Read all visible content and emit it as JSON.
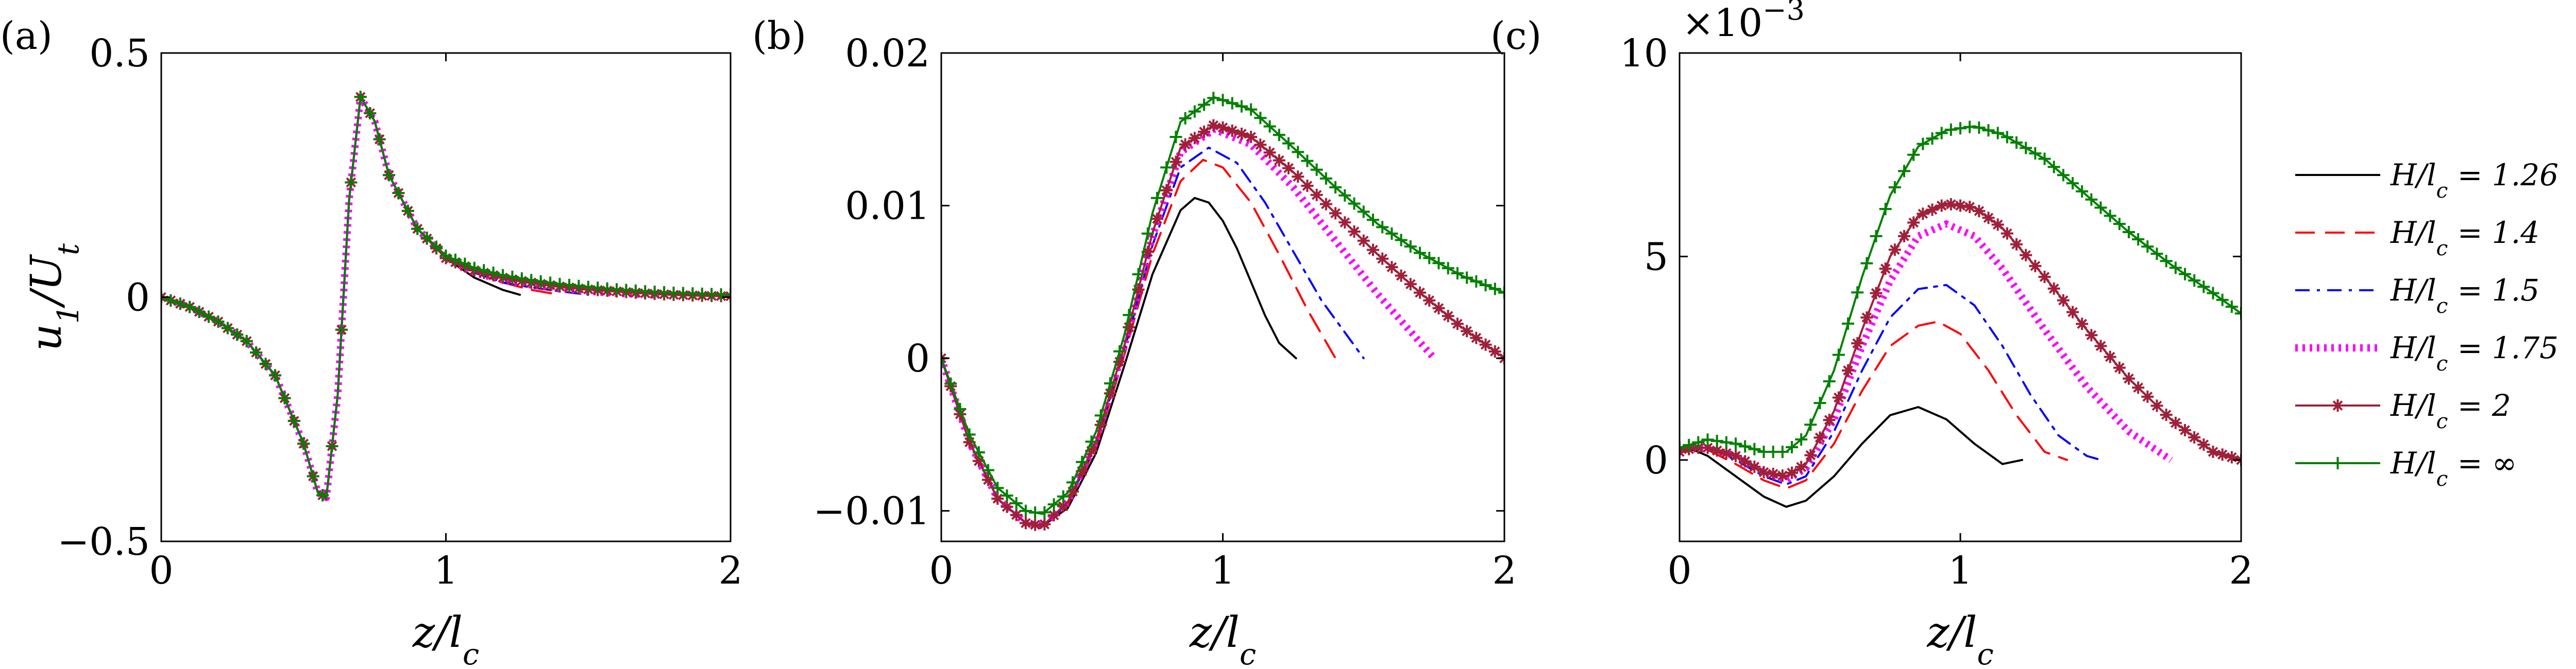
{
  "chart_data": [
    {
      "panel": "(a)",
      "type": "line",
      "xlabel": "z/l_c",
      "ylabel": "u_1/U_t",
      "xlim": [
        0,
        2
      ],
      "ylim": [
        -0.5,
        0.5
      ],
      "xticks": [
        0,
        1,
        2
      ],
      "yticks": [
        -0.5,
        0,
        0.5
      ],
      "xtick_labels": [
        "0",
        "1",
        "2"
      ],
      "ytick_labels": [
        "−0.5",
        "0",
        "0.5"
      ],
      "grid": false,
      "series": [
        {
          "name": "H/l_c = 1.26",
          "color": "#000000",
          "dash": "solid",
          "marker": "none",
          "x": [
            0,
            0.1,
            0.2,
            0.3,
            0.4,
            0.5,
            0.55,
            0.58,
            0.62,
            0.66,
            0.7,
            0.75,
            0.8,
            0.9,
            1.0,
            1.1,
            1.2,
            1.26
          ],
          "y": [
            0,
            -0.02,
            -0.05,
            -0.09,
            -0.16,
            -0.3,
            -0.4,
            -0.41,
            -0.2,
            0.2,
            0.41,
            0.36,
            0.25,
            0.14,
            0.08,
            0.04,
            0.015,
            0.005
          ]
        },
        {
          "name": "H/l_c = 1.4",
          "color": "#ff0000",
          "dash": "long-dash",
          "marker": "none",
          "x": [
            0,
            0.1,
            0.2,
            0.3,
            0.4,
            0.5,
            0.55,
            0.58,
            0.62,
            0.66,
            0.7,
            0.75,
            0.8,
            0.9,
            1.0,
            1.1,
            1.2,
            1.3,
            1.4
          ],
          "y": [
            0,
            -0.02,
            -0.05,
            -0.09,
            -0.16,
            -0.3,
            -0.4,
            -0.41,
            -0.2,
            0.2,
            0.41,
            0.36,
            0.25,
            0.14,
            0.08,
            0.05,
            0.03,
            0.015,
            0.005
          ]
        },
        {
          "name": "H/l_c = 1.5",
          "color": "#0000ff",
          "dash": "dash-dot",
          "marker": "none",
          "x": [
            0,
            0.1,
            0.2,
            0.3,
            0.4,
            0.5,
            0.55,
            0.58,
            0.62,
            0.66,
            0.7,
            0.75,
            0.8,
            0.9,
            1.0,
            1.1,
            1.2,
            1.3,
            1.4,
            1.5
          ],
          "y": [
            0,
            -0.02,
            -0.05,
            -0.09,
            -0.16,
            -0.3,
            -0.4,
            -0.41,
            -0.2,
            0.2,
            0.41,
            0.36,
            0.25,
            0.14,
            0.08,
            0.05,
            0.03,
            0.02,
            0.012,
            0.005
          ]
        },
        {
          "name": "H/l_c = 1.75",
          "color": "#ff00ff",
          "dash": "dotted",
          "marker": "none",
          "x": [
            0,
            0.1,
            0.2,
            0.3,
            0.4,
            0.5,
            0.55,
            0.58,
            0.62,
            0.66,
            0.7,
            0.75,
            0.8,
            0.9,
            1.0,
            1.1,
            1.2,
            1.3,
            1.4,
            1.5,
            1.6,
            1.75
          ],
          "y": [
            0,
            -0.02,
            -0.05,
            -0.09,
            -0.16,
            -0.3,
            -0.4,
            -0.41,
            -0.2,
            0.2,
            0.41,
            0.36,
            0.25,
            0.14,
            0.08,
            0.05,
            0.035,
            0.025,
            0.018,
            0.012,
            0.008,
            0.004
          ]
        },
        {
          "name": "H/l_c = 2",
          "color": "#a0203a",
          "dash": "solid",
          "marker": "asterisk",
          "x": [
            0,
            0.1,
            0.2,
            0.3,
            0.4,
            0.5,
            0.55,
            0.58,
            0.62,
            0.66,
            0.7,
            0.75,
            0.8,
            0.9,
            1.0,
            1.1,
            1.2,
            1.3,
            1.4,
            1.5,
            1.6,
            1.7,
            1.8,
            1.9,
            2.0
          ],
          "y": [
            0,
            -0.02,
            -0.05,
            -0.09,
            -0.16,
            -0.3,
            -0.4,
            -0.41,
            -0.2,
            0.2,
            0.41,
            0.36,
            0.25,
            0.14,
            0.08,
            0.055,
            0.04,
            0.03,
            0.022,
            0.016,
            0.012,
            0.008,
            0.005,
            0.003,
            0.002
          ]
        },
        {
          "name": "H/l_c = ∞",
          "color": "#008000",
          "dash": "solid",
          "marker": "plus",
          "x": [
            0,
            0.1,
            0.2,
            0.3,
            0.4,
            0.5,
            0.55,
            0.58,
            0.62,
            0.66,
            0.7,
            0.75,
            0.8,
            0.9,
            1.0,
            1.1,
            1.2,
            1.3,
            1.4,
            1.5,
            1.6,
            1.7,
            1.8,
            1.9,
            2.0
          ],
          "y": [
            0,
            -0.02,
            -0.05,
            -0.09,
            -0.16,
            -0.3,
            -0.4,
            -0.41,
            -0.2,
            0.2,
            0.41,
            0.36,
            0.25,
            0.14,
            0.085,
            0.06,
            0.045,
            0.035,
            0.027,
            0.021,
            0.016,
            0.012,
            0.009,
            0.007,
            0.005
          ]
        }
      ]
    },
    {
      "panel": "(b)",
      "type": "line",
      "xlabel": "z/l_c",
      "ylabel": "",
      "xlim": [
        0,
        2
      ],
      "ylim": [
        -0.012,
        0.02
      ],
      "xticks": [
        0,
        1,
        2
      ],
      "yticks": [
        -0.01,
        0,
        0.01,
        0.02
      ],
      "xtick_labels": [
        "0",
        "1",
        "2"
      ],
      "ytick_labels": [
        "−0.01",
        "0",
        "0.01",
        "0.02"
      ],
      "grid": false,
      "series": [
        {
          "name": "H/l_c = 1.26",
          "color": "#000000",
          "dash": "solid",
          "marker": "none",
          "x": [
            0,
            0.1,
            0.2,
            0.3,
            0.36,
            0.45,
            0.55,
            0.65,
            0.75,
            0.85,
            0.9,
            0.95,
            1.0,
            1.05,
            1.1,
            1.15,
            1.2,
            1.26
          ],
          "y": [
            0,
            -0.0055,
            -0.0092,
            -0.0108,
            -0.011,
            -0.0098,
            -0.0062,
            -0.0005,
            0.0055,
            0.0097,
            0.0105,
            0.0102,
            0.009,
            0.0072,
            0.005,
            0.0028,
            0.001,
            0
          ]
        },
        {
          "name": "H/l_c = 1.4",
          "color": "#ff0000",
          "dash": "long-dash",
          "marker": "none",
          "x": [
            0,
            0.1,
            0.2,
            0.3,
            0.36,
            0.45,
            0.55,
            0.65,
            0.75,
            0.85,
            0.93,
            1.0,
            1.1,
            1.2,
            1.3,
            1.4
          ],
          "y": [
            0,
            -0.0055,
            -0.0092,
            -0.0108,
            -0.011,
            -0.0096,
            -0.0058,
            0.0002,
            0.0068,
            0.0116,
            0.013,
            0.0125,
            0.0102,
            0.0068,
            0.0032,
            0
          ]
        },
        {
          "name": "H/l_c = 1.5",
          "color": "#0000ff",
          "dash": "dash-dot",
          "marker": "none",
          "x": [
            0,
            0.1,
            0.2,
            0.3,
            0.36,
            0.45,
            0.55,
            0.65,
            0.75,
            0.85,
            0.95,
            1.05,
            1.15,
            1.25,
            1.35,
            1.5
          ],
          "y": [
            0,
            -0.0055,
            -0.0092,
            -0.0108,
            -0.011,
            -0.0095,
            -0.0056,
            0.0005,
            0.0074,
            0.0125,
            0.0138,
            0.0128,
            0.0102,
            0.007,
            0.0038,
            0
          ]
        },
        {
          "name": "H/l_c = 1.75",
          "color": "#ff00ff",
          "dash": "dotted",
          "marker": "none",
          "x": [
            0,
            0.1,
            0.2,
            0.3,
            0.36,
            0.45,
            0.55,
            0.65,
            0.75,
            0.85,
            0.97,
            1.1,
            1.25,
            1.4,
            1.55,
            1.75
          ],
          "y": [
            0,
            -0.0055,
            -0.0092,
            -0.0108,
            -0.011,
            -0.0094,
            -0.0054,
            0.0008,
            0.008,
            0.0135,
            0.015,
            0.014,
            0.0112,
            0.0077,
            0.0042,
            0
          ]
        },
        {
          "name": "H/l_c = 2",
          "color": "#a0203a",
          "dash": "solid",
          "marker": "asterisk",
          "x": [
            0,
            0.1,
            0.2,
            0.3,
            0.36,
            0.45,
            0.55,
            0.65,
            0.75,
            0.85,
            0.97,
            1.1,
            1.25,
            1.4,
            1.55,
            1.7,
            1.85,
            2.0
          ],
          "y": [
            0,
            -0.0055,
            -0.0092,
            -0.0108,
            -0.011,
            -0.0094,
            -0.0054,
            0.0008,
            0.0082,
            0.0138,
            0.0153,
            0.0145,
            0.0122,
            0.0095,
            0.0068,
            0.0043,
            0.002,
            0
          ]
        },
        {
          "name": "H/l_c = ∞",
          "color": "#008000",
          "dash": "solid",
          "marker": "plus",
          "x": [
            0,
            0.1,
            0.2,
            0.3,
            0.36,
            0.45,
            0.55,
            0.65,
            0.75,
            0.85,
            0.97,
            1.1,
            1.25,
            1.4,
            1.55,
            1.7,
            1.85,
            2.0
          ],
          "y": [
            0,
            -0.005,
            -0.0085,
            -0.01,
            -0.0102,
            -0.0088,
            -0.0048,
            0.0015,
            0.0095,
            0.0155,
            0.0171,
            0.0163,
            0.0138,
            0.0112,
            0.0088,
            0.0069,
            0.0054,
            0.0043
          ]
        }
      ]
    },
    {
      "panel": "(c)",
      "type": "line",
      "xlabel": "z/l_c",
      "ylabel": "",
      "xlim": [
        0,
        2
      ],
      "ylim": [
        -0.002,
        0.01
      ],
      "xticks": [
        0,
        1,
        2
      ],
      "yticks": [
        0,
        0.005,
        0.01
      ],
      "xtick_labels": [
        "0",
        "1",
        "2"
      ],
      "ytick_labels": [
        "0",
        "5",
        "10"
      ],
      "y_multiplier": "×10",
      "y_multiplier_exponent": "−3",
      "grid": false,
      "series": [
        {
          "name": "H/l_c = 1.26",
          "color": "#000000",
          "dash": "solid",
          "marker": "none",
          "x": [
            0,
            0.05,
            0.1,
            0.2,
            0.3,
            0.38,
            0.45,
            0.55,
            0.65,
            0.75,
            0.85,
            0.95,
            1.05,
            1.15,
            1.22
          ],
          "y": [
            0.0002,
            0.00025,
            0.0001,
            -0.0004,
            -0.0009,
            -0.00115,
            -0.001,
            -0.0004,
            0.0004,
            0.0011,
            0.0013,
            0.001,
            0.0004,
            -0.0001,
            0
          ]
        },
        {
          "name": "H/l_c = 1.4",
          "color": "#ff0000",
          "dash": "long-dash",
          "marker": "none",
          "x": [
            0,
            0.05,
            0.1,
            0.2,
            0.3,
            0.38,
            0.45,
            0.55,
            0.65,
            0.75,
            0.85,
            0.92,
            1.0,
            1.1,
            1.2,
            1.3,
            1.38
          ],
          "y": [
            0.0002,
            0.0003,
            0.00025,
            -0.0001,
            -0.0005,
            -0.0007,
            -0.0005,
            0.0004,
            0.0017,
            0.0028,
            0.0033,
            0.0034,
            0.0031,
            0.0022,
            0.0011,
            0.0002,
            0
          ]
        },
        {
          "name": "H/l_c = 1.5",
          "color": "#0000ff",
          "dash": "dash-dot",
          "marker": "none",
          "x": [
            0,
            0.05,
            0.1,
            0.2,
            0.3,
            0.38,
            0.45,
            0.55,
            0.65,
            0.75,
            0.85,
            0.95,
            1.05,
            1.15,
            1.25,
            1.35,
            1.45,
            1.5
          ],
          "y": [
            0.0002,
            0.0003,
            0.0003,
            0,
            -0.0004,
            -0.0006,
            -0.0004,
            0.0007,
            0.0022,
            0.0035,
            0.0042,
            0.0043,
            0.0038,
            0.0028,
            0.0016,
            0.0006,
            0.0001,
            0
          ]
        },
        {
          "name": "H/l_c = 1.75",
          "color": "#ff00ff",
          "dash": "dotted",
          "marker": "none",
          "x": [
            0,
            0.05,
            0.1,
            0.2,
            0.3,
            0.38,
            0.45,
            0.55,
            0.65,
            0.75,
            0.85,
            0.95,
            1.05,
            1.15,
            1.3,
            1.45,
            1.6,
            1.75
          ],
          "y": [
            0.0002,
            0.0003,
            0.0003,
            0.0001,
            -0.0003,
            -0.0005,
            -0.0002,
            0.001,
            0.0028,
            0.0044,
            0.0055,
            0.0058,
            0.0055,
            0.0047,
            0.0032,
            0.0018,
            0.0007,
            0
          ]
        },
        {
          "name": "H/l_c = 2",
          "color": "#a0203a",
          "dash": "solid",
          "marker": "asterisk",
          "x": [
            0,
            0.05,
            0.1,
            0.2,
            0.3,
            0.38,
            0.45,
            0.55,
            0.65,
            0.75,
            0.85,
            0.95,
            1.05,
            1.15,
            1.3,
            1.45,
            1.6,
            1.75,
            1.9,
            2.0
          ],
          "y": [
            0.0002,
            0.0003,
            0.0003,
            0.0001,
            -0.0003,
            -0.0004,
            -0.0001,
            0.0012,
            0.0032,
            0.005,
            0.006,
            0.0063,
            0.0062,
            0.0057,
            0.0045,
            0.0032,
            0.002,
            0.001,
            0.0002,
            0
          ]
        },
        {
          "name": "H/l_c = ∞",
          "color": "#008000",
          "dash": "solid",
          "marker": "plus",
          "x": [
            0,
            0.05,
            0.1,
            0.2,
            0.3,
            0.38,
            0.45,
            0.55,
            0.65,
            0.75,
            0.85,
            0.95,
            1.05,
            1.15,
            1.3,
            1.45,
            1.6,
            1.75,
            1.9,
            2.0
          ],
          "y": [
            0.0003,
            0.0004,
            0.0005,
            0.0004,
            0.0002,
            0.0002,
            0.0006,
            0.0022,
            0.0045,
            0.0065,
            0.0077,
            0.0081,
            0.0082,
            0.008,
            0.0074,
            0.0065,
            0.0056,
            0.0048,
            0.0041,
            0.0036
          ]
        }
      ]
    }
  ],
  "legend": {
    "placement": "right",
    "entries": [
      {
        "label": "H/l_c = 1.26",
        "color": "#000000",
        "dash": "solid",
        "marker": "none"
      },
      {
        "label": "H/l_c = 1.4",
        "color": "#ff0000",
        "dash": "long-dash",
        "marker": "none"
      },
      {
        "label": "H/l_c = 1.5",
        "color": "#0000ff",
        "dash": "dash-dot",
        "marker": "none"
      },
      {
        "label": "H/l_c = 1.75",
        "color": "#ff00ff",
        "dash": "dotted",
        "marker": "none"
      },
      {
        "label": "H/l_c = 2",
        "color": "#a0203a",
        "dash": "solid",
        "marker": "asterisk"
      },
      {
        "label": "H/l_c = ∞",
        "color": "#008000",
        "dash": "solid",
        "marker": "plus"
      }
    ]
  }
}
